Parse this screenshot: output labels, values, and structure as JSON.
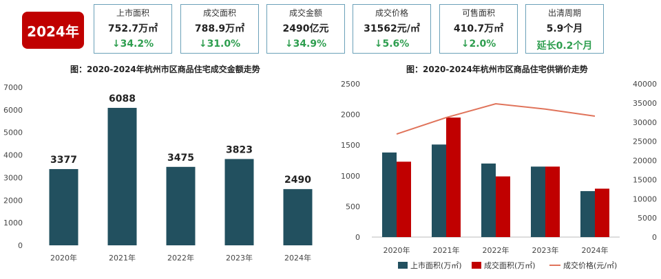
{
  "badge": {
    "year": "2024年"
  },
  "kpis": [
    {
      "label": "上市面积",
      "value": "752.7万㎡",
      "change": "↓34.2%"
    },
    {
      "label": "成交面积",
      "value": "788.9万㎡",
      "change": "↓31.0%"
    },
    {
      "label": "成交金额",
      "value": "2490亿元",
      "change": "↓34.9%"
    },
    {
      "label": "成交价格",
      "value": "31562元/㎡",
      "change": "↓5.6%"
    },
    {
      "label": "可售面积",
      "value": "410.7万㎡",
      "change": "↓2.0%"
    },
    {
      "label": "出清周期",
      "value": "5.9个月",
      "change": "延长0.2个月"
    }
  ],
  "colors": {
    "badge": "#c00000",
    "teal": "#22505f",
    "red": "#c00000",
    "line": "#e0735a",
    "green": "#2e9e4f",
    "box_border": "#6aa0b8"
  },
  "chart_data": [
    {
      "type": "bar",
      "title": "图：2020-2024年杭州市区商品住宅成交金额走势",
      "categories": [
        "2020年",
        "2021年",
        "2022年",
        "2023年",
        "2024年"
      ],
      "values": [
        3377,
        6088,
        3475,
        3823,
        2490
      ],
      "data_labels": [
        "3377",
        "6088",
        "3475",
        "3823",
        "2490"
      ],
      "ylim": [
        0,
        7000
      ],
      "yticks": [
        "0",
        "1000",
        "2000",
        "3000",
        "4000",
        "5000",
        "6000",
        "7000"
      ],
      "grid": false
    },
    {
      "type": "bar",
      "title": "图：2020-2024年杭州市区商品住宅供销价走势",
      "categories": [
        "2020年",
        "2021年",
        "2022年",
        "2023年",
        "2024年"
      ],
      "series": [
        {
          "name": "上市面积(万㎡)",
          "type": "bar",
          "axis": "left",
          "values": [
            1380,
            1510,
            1200,
            1150,
            750
          ]
        },
        {
          "name": "成交面积(万㎡)",
          "type": "bar",
          "axis": "left",
          "values": [
            1230,
            1950,
            990,
            1150,
            790
          ]
        },
        {
          "name": "成交价格(元/㎡)",
          "type": "line",
          "axis": "right",
          "values": [
            26900,
            31200,
            34800,
            33400,
            31562
          ]
        }
      ],
      "ylim": [
        0,
        2500
      ],
      "y2lim": [
        0,
        40000
      ],
      "yticks": [
        "0",
        "500",
        "1000",
        "1500",
        "2000",
        "2500"
      ],
      "y2ticks": [
        "0",
        "5000",
        "10000",
        "15000",
        "20000",
        "25000",
        "30000",
        "35000",
        "40000"
      ],
      "legend_position": "bottom",
      "grid": false
    }
  ]
}
